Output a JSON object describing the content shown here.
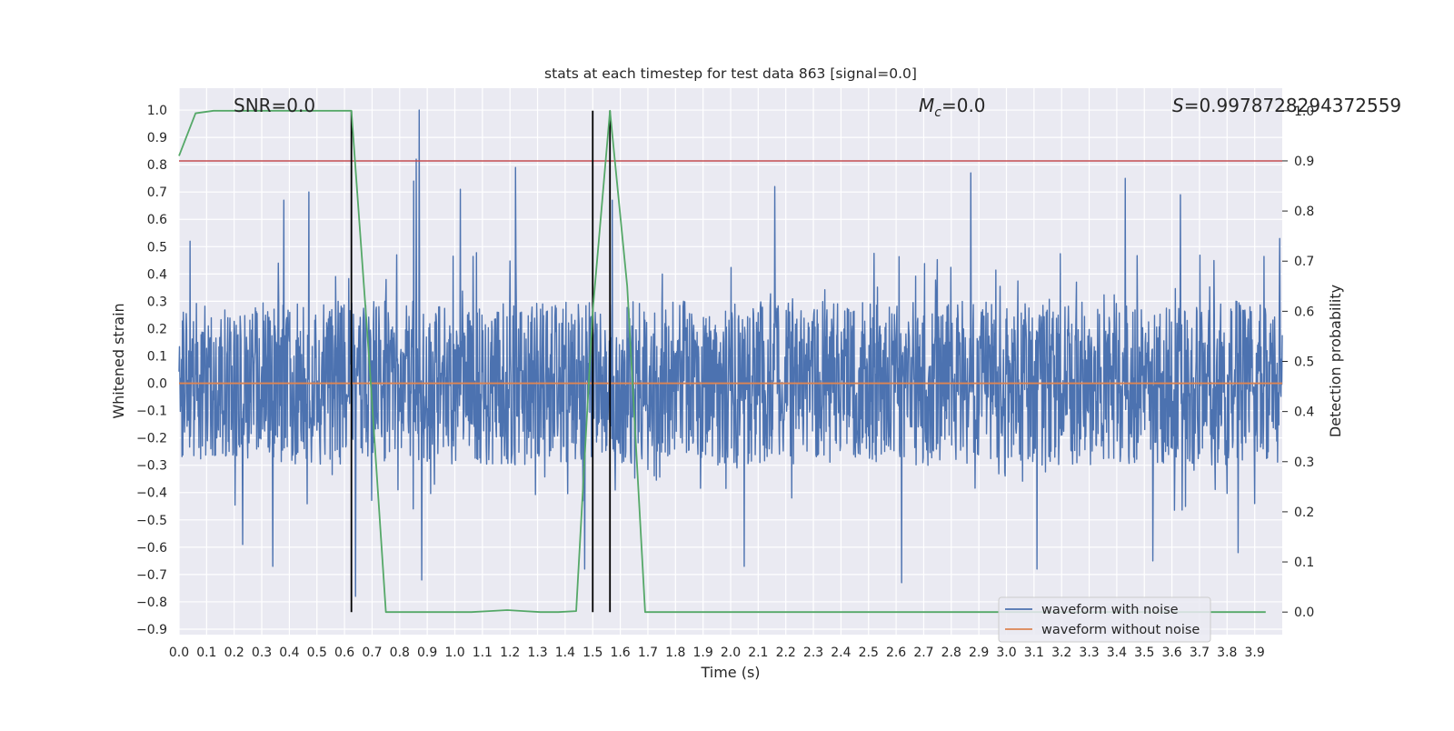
{
  "chart_data": {
    "type": "line",
    "title": "stats at each timestep for test data 863 [signal=0.0]",
    "xlabel": "Time (s)",
    "ylabel": "Whitened strain",
    "y2label": "Detection probability",
    "xlim": [
      0.0,
      4.0
    ],
    "ylim": [
      -0.92,
      1.08
    ],
    "y2lim": [
      -0.045,
      1.045
    ],
    "x_ticks": [
      "0.0",
      "0.1",
      "0.2",
      "0.3",
      "0.4",
      "0.5",
      "0.6",
      "0.7",
      "0.8",
      "0.9",
      "1.0",
      "1.1",
      "1.2",
      "1.3",
      "1.4",
      "1.5",
      "1.6",
      "1.7",
      "1.8",
      "1.9",
      "2.0",
      "2.1",
      "2.2",
      "2.3",
      "2.4",
      "2.5",
      "2.6",
      "2.7",
      "2.8",
      "2.9",
      "3.0",
      "3.1",
      "3.2",
      "3.3",
      "3.4",
      "3.5",
      "3.6",
      "3.7",
      "3.8",
      "3.9"
    ],
    "y_ticks": [
      "1.0",
      "0.9",
      "0.8",
      "0.7",
      "0.6",
      "0.5",
      "0.4",
      "0.3",
      "0.2",
      "0.1",
      "0.0",
      "−0.1",
      "−0.2",
      "−0.3",
      "−0.4",
      "−0.5",
      "−0.6",
      "−0.7",
      "−0.8",
      "−0.9"
    ],
    "y2_ticks": [
      "1.0",
      "0.9",
      "0.8",
      "0.7",
      "0.6",
      "0.5",
      "0.4",
      "0.3",
      "0.2",
      "0.1",
      "0.0"
    ],
    "grid": true,
    "legend_position": "lower-right",
    "annotations": {
      "snr": "SNR=0.0",
      "mc_symbol": "M",
      "mc_sub": "c",
      "mc_value": "=0.0",
      "s_symbol": "S",
      "s_value": "=0.9978728294372559"
    },
    "series": [
      {
        "name": "waveform with noise",
        "color": "#4c72b0",
        "noise_profile": {
          "x_start": 0.0,
          "x_end": 4.0,
          "typical_amplitude": 0.3,
          "max": 1.0,
          "min": -0.76
        },
        "peaks": [
          {
            "x": 0.87,
            "y": 1.0
          },
          {
            "x": 0.86,
            "y": 0.82
          },
          {
            "x": 0.85,
            "y": 0.74
          },
          {
            "x": 1.22,
            "y": 0.79
          },
          {
            "x": 0.47,
            "y": 0.7
          },
          {
            "x": 0.38,
            "y": 0.67
          },
          {
            "x": 1.02,
            "y": 0.71
          },
          {
            "x": 2.87,
            "y": 0.77
          },
          {
            "x": 3.43,
            "y": 0.75
          },
          {
            "x": 3.63,
            "y": 0.69
          },
          {
            "x": 2.16,
            "y": 0.72
          },
          {
            "x": 1.57,
            "y": 0.67
          },
          {
            "x": 0.04,
            "y": 0.52
          },
          {
            "x": 3.99,
            "y": 0.53
          },
          {
            "x": 0.88,
            "y": -0.72
          },
          {
            "x": 0.64,
            "y": -0.78
          },
          {
            "x": 2.62,
            "y": -0.73
          },
          {
            "x": 0.34,
            "y": -0.67
          },
          {
            "x": 1.47,
            "y": -0.68
          },
          {
            "x": 3.11,
            "y": -0.68
          },
          {
            "x": 2.05,
            "y": -0.67
          },
          {
            "x": 3.53,
            "y": -0.65
          },
          {
            "x": 3.84,
            "y": -0.62
          },
          {
            "x": 0.23,
            "y": -0.59
          }
        ]
      },
      {
        "name": "waveform without noise",
        "color": "#dd8452",
        "x": [
          0.0,
          4.0
        ],
        "y": [
          0.0,
          0.0
        ]
      },
      {
        "axis": "right",
        "color": "#55a868",
        "x": [
          0.0,
          0.06,
          0.125,
          0.19,
          0.25,
          0.31,
          0.375,
          0.44,
          0.5,
          0.56,
          0.625,
          0.69,
          0.75,
          0.81,
          0.875,
          0.94,
          1.0,
          1.06,
          1.125,
          1.19,
          1.25,
          1.31,
          1.375,
          1.44,
          1.5,
          1.5625,
          1.625,
          1.69,
          1.75,
          1.81,
          1.875,
          2.0,
          2.5,
          3.0,
          3.5,
          3.94
        ],
        "y": [
          0.91,
          0.995,
          1.0,
          1.0,
          1.0,
          1.0,
          1.0,
          1.0,
          1.0,
          1.0,
          1.0,
          0.5,
          0.0,
          0.0,
          0.0,
          0.0,
          0.0,
          0.0,
          0.002,
          0.004,
          0.002,
          0.0,
          0.0,
          0.002,
          0.6,
          1.0,
          0.65,
          0.0,
          0.0,
          0.0,
          0.0,
          0.0,
          0.0,
          0.0,
          0.0,
          0.0
        ]
      }
    ],
    "hlines": [
      {
        "axis": "right",
        "y": 0.9,
        "color": "#c44e52"
      }
    ],
    "vlines": [
      {
        "x": 0.625,
        "ymin": 0.0,
        "ymax": 1.0,
        "color": "#000000"
      },
      {
        "x": 1.5,
        "ymin": 0.0,
        "ymax": 1.0,
        "color": "#000000"
      },
      {
        "x": 1.5625,
        "ymin": 0.0,
        "ymax": 1.0,
        "color": "#000000"
      }
    ]
  }
}
